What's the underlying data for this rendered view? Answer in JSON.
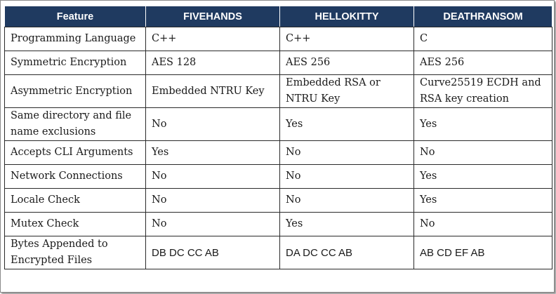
{
  "table": {
    "headers": [
      "Feature",
      "FIVEHANDS",
      "HELLOKITTY",
      "DEATHRANSOM"
    ],
    "rows": [
      [
        "Programming Language",
        "C++",
        "C++",
        "C"
      ],
      [
        "Symmetric Encryption",
        "AES 128",
        "AES 256",
        "AES 256"
      ],
      [
        "Asymmetric Encryption",
        "Embedded NTRU Key",
        "Embedded RSA or NTRU Key",
        "Curve25519 ECDH and RSA key creation"
      ],
      [
        "Same directory and file name exclusions",
        "No",
        "Yes",
        "Yes"
      ],
      [
        "Accepts CLI Arguments",
        "Yes",
        "No",
        "No"
      ],
      [
        "Network Connections",
        "No",
        "No",
        "Yes"
      ],
      [
        "Locale Check",
        "No",
        "No",
        "Yes"
      ],
      [
        "Mutex Check",
        "No",
        "Yes",
        "No"
      ],
      [
        "Bytes Appended to Encrypted Files",
        "DB DC CC AB",
        "DA DC CC AB",
        "AB CD EF AB"
      ]
    ]
  },
  "colors": {
    "header_bg": "#1f3a60",
    "header_text": "#ffffff",
    "border": "#2a2a2a"
  }
}
